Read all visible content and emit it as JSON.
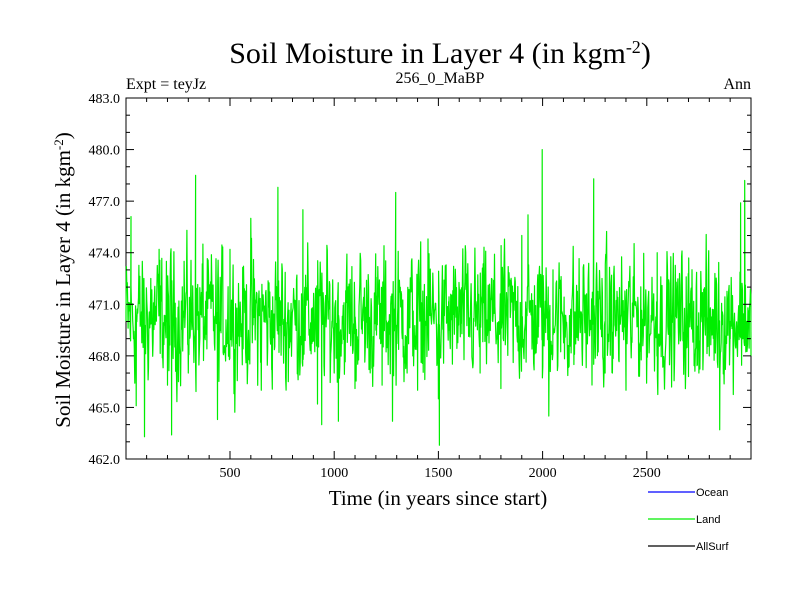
{
  "chart_data": {
    "type": "line",
    "title": "Soil Moisture in Layer 4 (in kgm",
    "title_sup": "-2",
    "title_suffix": ")",
    "subtitle_left": "Expt = teyJz",
    "subtitle_center": "256_0_MaBP",
    "subtitle_right": "Ann",
    "xlabel": "Time (in years since start)",
    "ylabel": "Soil Moisture in Layer 4 (in kgm",
    "ylabel_sup": "-2",
    "ylabel_suffix": ")",
    "xlim": [
      1,
      3000
    ],
    "ylim": [
      462.0,
      483.0
    ],
    "xticks": [
      500,
      1000,
      1500,
      2000,
      2500
    ],
    "xtick_labels": [
      "500",
      "1000",
      "1500",
      "2000",
      "2500"
    ],
    "yticks": [
      462.0,
      465.0,
      468.0,
      471.0,
      474.0,
      477.0,
      480.0,
      483.0
    ],
    "ytick_labels": [
      "462.0",
      "465.0",
      "468.0",
      "471.0",
      "474.0",
      "477.0",
      "480.0",
      "483.0"
    ],
    "legend": [
      {
        "name": "Ocean",
        "color": "#0000ff"
      },
      {
        "name": "Land",
        "color": "#00ee00"
      },
      {
        "name": "AllSurf",
        "color": "#000000"
      }
    ],
    "series": [
      {
        "name": "Land",
        "color": "#00ee00",
        "mean": 470.2,
        "points": [
          [
            1,
            470.0
          ],
          [
            25,
            476.1
          ],
          [
            50,
            465.1
          ],
          [
            75,
            470.5
          ],
          [
            90,
            463.3
          ],
          [
            120,
            472.5
          ],
          [
            160,
            474.2
          ],
          [
            200,
            466.3
          ],
          [
            220,
            463.4
          ],
          [
            280,
            473.5
          ],
          [
            300,
            467.0
          ],
          [
            335,
            478.5
          ],
          [
            355,
            469.0
          ],
          [
            370,
            474.5
          ],
          [
            440,
            464.3
          ],
          [
            500,
            474.2
          ],
          [
            600,
            476.0
          ],
          [
            650,
            466.0
          ],
          [
            700,
            467.2
          ],
          [
            730,
            477.8
          ],
          [
            780,
            466.5
          ],
          [
            850,
            476.5
          ],
          [
            920,
            465.2
          ],
          [
            940,
            464.0
          ],
          [
            1000,
            467.0
          ],
          [
            1020,
            464.2
          ],
          [
            1100,
            466.1
          ],
          [
            1150,
            469.0
          ],
          [
            1200,
            469.5
          ],
          [
            1230,
            466.3
          ],
          [
            1280,
            464.2
          ],
          [
            1295,
            477.5
          ],
          [
            1350,
            467.0
          ],
          [
            1400,
            466.0
          ],
          [
            1450,
            474.8
          ],
          [
            1500,
            465.5
          ],
          [
            1505,
            462.8
          ],
          [
            1550,
            469.5
          ],
          [
            1600,
            472.0
          ],
          [
            1700,
            467.0
          ],
          [
            1800,
            466.1
          ],
          [
            1900,
            475.0
          ],
          [
            1930,
            476.2
          ],
          [
            1980,
            470.5
          ],
          [
            1998,
            480.0
          ],
          [
            2030,
            464.5
          ],
          [
            2050,
            473.0
          ],
          [
            2150,
            467.5
          ],
          [
            2245,
            478.3
          ],
          [
            2300,
            467.0
          ],
          [
            2400,
            466.0
          ],
          [
            2500,
            467.5
          ],
          [
            2550,
            474.0
          ],
          [
            2600,
            472.5
          ],
          [
            2700,
            466.8
          ],
          [
            2750,
            467.0
          ],
          [
            2800,
            468.0
          ],
          [
            2850,
            463.7
          ],
          [
            2900,
            469.0
          ],
          [
            2950,
            476.9
          ],
          [
            2970,
            478.2
          ],
          [
            3000,
            468.0
          ]
        ]
      }
    ]
  }
}
